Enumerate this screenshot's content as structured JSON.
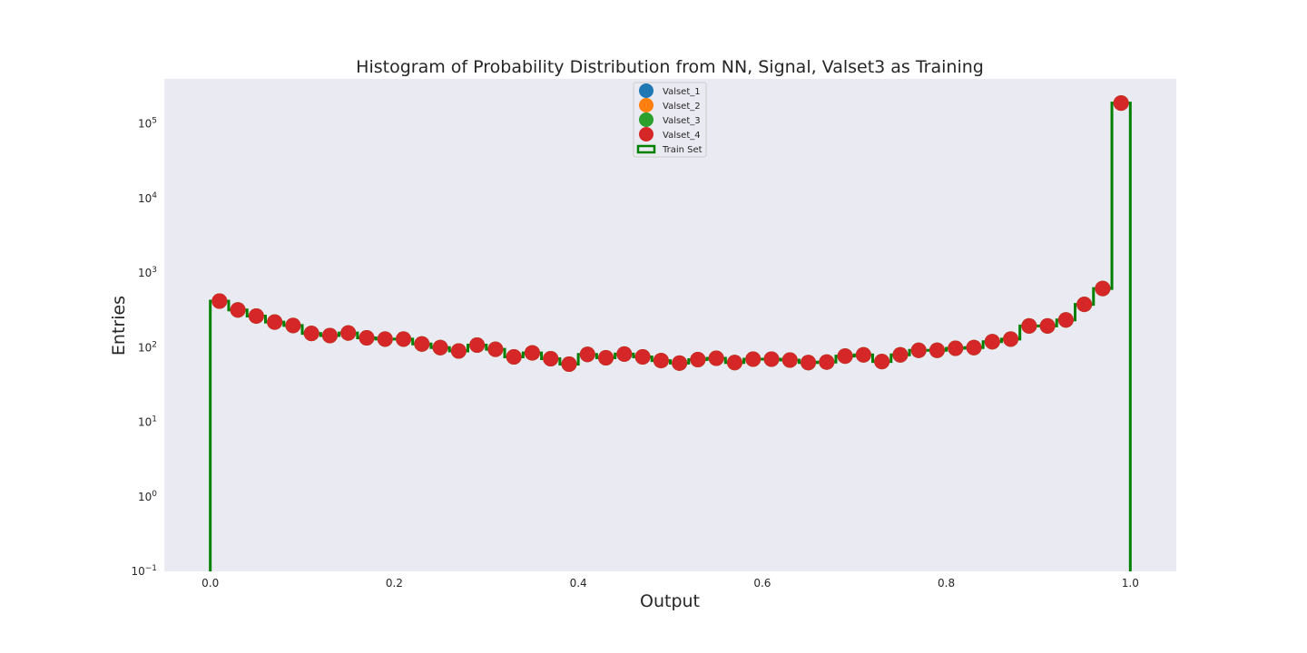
{
  "chart_data": {
    "type": "scatter",
    "title": "Histogram of Probability Distribution from NN, Signal, Valset3 as Training",
    "xlabel": "Output",
    "ylabel": "Entries",
    "xlim": [
      -0.05,
      1.05
    ],
    "ylim": [
      0.1,
      400000
    ],
    "yscale": "log",
    "grid": false,
    "legend_position": "top-center",
    "x_ticks": [
      {
        "value": 0.0,
        "label": "0.0"
      },
      {
        "value": 0.2,
        "label": "0.2"
      },
      {
        "value": 0.4,
        "label": "0.4"
      },
      {
        "value": 0.6,
        "label": "0.6"
      },
      {
        "value": 0.8,
        "label": "0.8"
      },
      {
        "value": 1.0,
        "label": "1.0"
      }
    ],
    "y_ticks": [
      {
        "value": 0.1,
        "base": "10",
        "exp": "−1"
      },
      {
        "value": 1,
        "base": "10",
        "exp": "0"
      },
      {
        "value": 10,
        "base": "10",
        "exp": "1"
      },
      {
        "value": 100,
        "base": "10",
        "exp": "2"
      },
      {
        "value": 1000,
        "base": "10",
        "exp": "3"
      },
      {
        "value": 10000,
        "base": "10",
        "exp": "4"
      },
      {
        "value": 100000,
        "base": "10",
        "exp": "5"
      }
    ],
    "x": [
      0.01,
      0.03,
      0.05,
      0.07,
      0.09,
      0.11,
      0.13,
      0.15,
      0.17,
      0.19,
      0.21,
      0.23,
      0.25,
      0.27,
      0.29,
      0.31,
      0.33,
      0.35,
      0.37,
      0.39,
      0.41,
      0.43,
      0.45,
      0.47,
      0.49,
      0.51,
      0.53,
      0.55,
      0.57,
      0.59,
      0.61,
      0.63,
      0.65,
      0.67,
      0.69,
      0.71,
      0.73,
      0.75,
      0.77,
      0.79,
      0.81,
      0.83,
      0.85,
      0.87,
      0.89,
      0.91,
      0.93,
      0.95,
      0.97,
      0.99
    ],
    "series": [
      {
        "name": "Valset_1",
        "color": "#1f77b4",
        "marker": "circle",
        "values": [
          420,
          320,
          265,
          220,
          198,
          155,
          145,
          157,
          135,
          130,
          130,
          112,
          100,
          90,
          108,
          95,
          75,
          85,
          71,
          60,
          81,
          73,
          82,
          75,
          67,
          62,
          69,
          72,
          63,
          70,
          70,
          68,
          63,
          64,
          77,
          80,
          65,
          80,
          92,
          92,
          98,
          100,
          120,
          130,
          195,
          195,
          235,
          380,
          620,
          190000
        ]
      },
      {
        "name": "Valset_2",
        "color": "#ff7f0e",
        "marker": "circle",
        "values": [
          420,
          320,
          265,
          220,
          198,
          155,
          145,
          157,
          135,
          130,
          130,
          112,
          100,
          90,
          108,
          95,
          75,
          85,
          71,
          60,
          81,
          73,
          82,
          75,
          67,
          62,
          69,
          72,
          63,
          70,
          70,
          68,
          63,
          64,
          77,
          80,
          65,
          80,
          92,
          92,
          98,
          100,
          120,
          130,
          195,
          195,
          235,
          380,
          620,
          190000
        ]
      },
      {
        "name": "Valset_3",
        "color": "#2ca02c",
        "marker": "circle",
        "values": [
          420,
          320,
          265,
          220,
          198,
          155,
          145,
          157,
          135,
          130,
          130,
          112,
          100,
          90,
          108,
          95,
          75,
          85,
          71,
          60,
          81,
          73,
          82,
          75,
          67,
          62,
          69,
          72,
          63,
          70,
          70,
          68,
          63,
          64,
          77,
          80,
          65,
          80,
          92,
          92,
          98,
          100,
          120,
          130,
          195,
          195,
          235,
          380,
          620,
          190000
        ]
      },
      {
        "name": "Valset_4",
        "color": "#d62728",
        "marker": "circle",
        "values": [
          420,
          320,
          265,
          220,
          198,
          155,
          145,
          157,
          135,
          130,
          130,
          112,
          100,
          90,
          108,
          95,
          75,
          85,
          71,
          60,
          81,
          73,
          82,
          75,
          67,
          62,
          69,
          72,
          63,
          70,
          70,
          68,
          63,
          64,
          77,
          80,
          65,
          80,
          92,
          92,
          98,
          100,
          120,
          130,
          195,
          195,
          235,
          380,
          620,
          190000
        ]
      },
      {
        "name": "Train Set",
        "color": "#008000",
        "type": "step",
        "bin_edges": [
          0.0,
          0.02,
          0.04,
          0.06,
          0.08,
          0.1,
          0.12,
          0.14,
          0.16,
          0.18,
          0.2,
          0.22,
          0.24,
          0.26,
          0.28,
          0.3,
          0.32,
          0.34,
          0.36,
          0.38,
          0.4,
          0.42,
          0.44,
          0.46,
          0.48,
          0.5,
          0.52,
          0.54,
          0.56,
          0.58,
          0.6,
          0.62,
          0.64,
          0.66,
          0.68,
          0.7,
          0.72,
          0.74,
          0.76,
          0.78,
          0.8,
          0.82,
          0.84,
          0.86,
          0.88,
          0.9,
          0.92,
          0.94,
          0.96,
          0.98,
          1.0
        ],
        "values": [
          420,
          320,
          265,
          220,
          198,
          155,
          145,
          157,
          135,
          130,
          130,
          112,
          100,
          90,
          108,
          95,
          75,
          85,
          71,
          60,
          81,
          73,
          82,
          75,
          67,
          62,
          69,
          72,
          63,
          70,
          70,
          68,
          63,
          64,
          77,
          80,
          65,
          80,
          92,
          92,
          98,
          100,
          120,
          130,
          195,
          195,
          235,
          380,
          620,
          190000
        ]
      }
    ]
  },
  "colors": {
    "plot_background": "#eaeaf2",
    "text": "#262626"
  }
}
